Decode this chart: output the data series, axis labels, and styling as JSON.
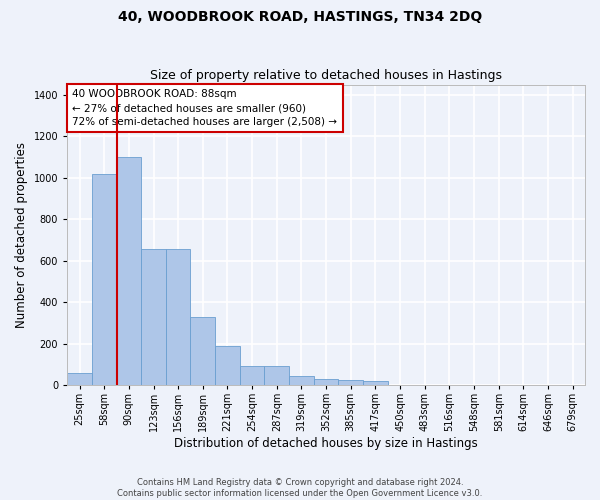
{
  "title": "40, WOODBROOK ROAD, HASTINGS, TN34 2DQ",
  "subtitle": "Size of property relative to detached houses in Hastings",
  "xlabel": "Distribution of detached houses by size in Hastings",
  "ylabel": "Number of detached properties",
  "footnote1": "Contains HM Land Registry data © Crown copyright and database right 2024.",
  "footnote2": "Contains public sector information licensed under the Open Government Licence v3.0.",
  "annotation_line1": "40 WOODBROOK ROAD: 88sqm",
  "annotation_line2": "← 27% of detached houses are smaller (960)",
  "annotation_line3": "72% of semi-detached houses are larger (2,508) →",
  "property_bin_index": 2,
  "bar_color": "#aec6e8",
  "bar_edge_color": "#6a9fd0",
  "vline_color": "#cc0000",
  "annotation_box_edge": "#cc0000",
  "annotation_box_face": "#ffffff",
  "categories": [
    "25sqm",
    "58sqm",
    "90sqm",
    "123sqm",
    "156sqm",
    "189sqm",
    "221sqm",
    "254sqm",
    "287sqm",
    "319sqm",
    "352sqm",
    "385sqm",
    "417sqm",
    "450sqm",
    "483sqm",
    "516sqm",
    "548sqm",
    "581sqm",
    "614sqm",
    "646sqm",
    "679sqm"
  ],
  "values": [
    60,
    1020,
    1100,
    655,
    655,
    330,
    190,
    90,
    90,
    45,
    28,
    25,
    20,
    0,
    0,
    0,
    0,
    0,
    0,
    0,
    0
  ],
  "ylim": [
    0,
    1450
  ],
  "yticks": [
    0,
    200,
    400,
    600,
    800,
    1000,
    1200,
    1400
  ],
  "bg_color": "#eef2fa",
  "grid_color": "#ffffff",
  "title_fontsize": 10,
  "subtitle_fontsize": 9,
  "axis_label_fontsize": 8.5,
  "tick_fontsize": 7,
  "annotation_fontsize": 7.5,
  "footnote_fontsize": 6.0
}
